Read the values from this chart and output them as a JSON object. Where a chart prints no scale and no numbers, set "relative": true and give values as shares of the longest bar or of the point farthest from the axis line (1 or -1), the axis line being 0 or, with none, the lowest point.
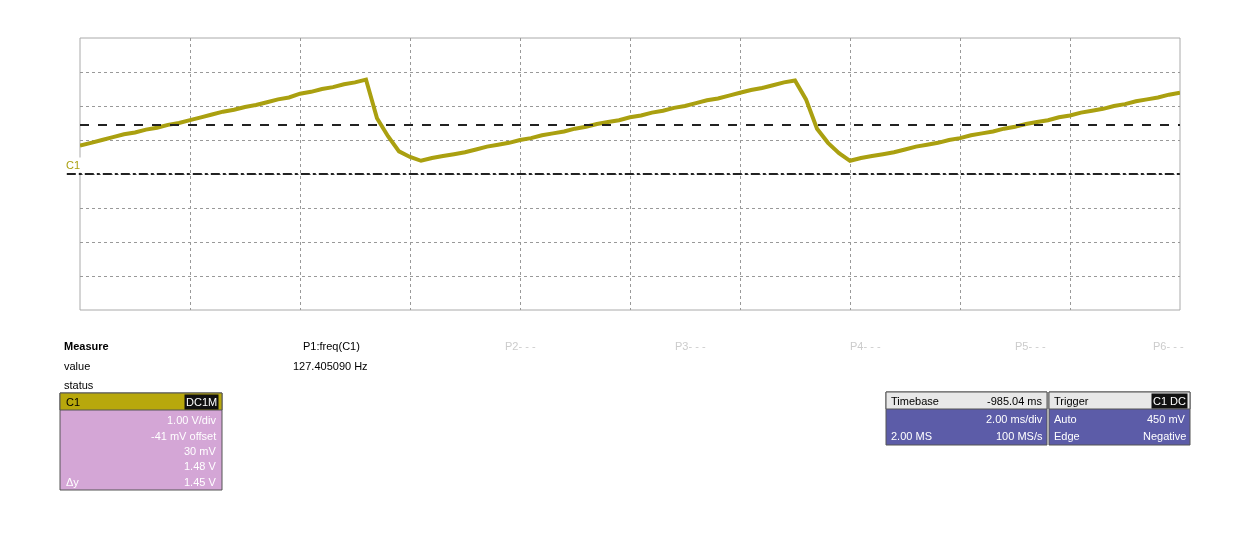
{
  "chart_data": {
    "type": "line",
    "relative": true,
    "grid": true,
    "marker": "none",
    "line_style": "solid",
    "categories": [
      null,
      null,
      null,
      null,
      null,
      null,
      null,
      null,
      null,
      null,
      null,
      null,
      null,
      null,
      null,
      null,
      null,
      null,
      null,
      null,
      null,
      null,
      null,
      null,
      null,
      null,
      null,
      null,
      null,
      null,
      null,
      null,
      null,
      null,
      null,
      null,
      null,
      null,
      null,
      null,
      null,
      null,
      null,
      null,
      null,
      null,
      null,
      null,
      null,
      null,
      null,
      null,
      null,
      null,
      null,
      null,
      null,
      null,
      null,
      null,
      null,
      null,
      null,
      null,
      null,
      null,
      null,
      null,
      null,
      null,
      null,
      null,
      null,
      null,
      null,
      null,
      null,
      null,
      null,
      null,
      null,
      null,
      null,
      null,
      null,
      null,
      null,
      null,
      null,
      null,
      null,
      null,
      null,
      null,
      null,
      null,
      null,
      null,
      null,
      null,
      null
    ],
    "series": [
      {
        "color": "#aaa010",
        "values": [
          0.3,
          0.33,
          0.36,
          0.39,
          0.42,
          0.44,
          0.47,
          0.49,
          0.52,
          0.54,
          0.57,
          0.6,
          0.63,
          0.66,
          0.68,
          0.71,
          0.73,
          0.76,
          0.79,
          0.81,
          0.85,
          0.87,
          0.9,
          0.92,
          0.95,
          0.97,
          1.0,
          0.59,
          0.4,
          0.24,
          0.18,
          0.14,
          0.17,
          0.19,
          0.21,
          0.23,
          0.26,
          0.29,
          0.31,
          0.33,
          0.36,
          0.38,
          0.41,
          0.43,
          0.45,
          0.48,
          0.5,
          0.53,
          0.55,
          0.57,
          0.6,
          0.62,
          0.65,
          0.67,
          0.7,
          0.72,
          0.75,
          0.78,
          0.8,
          0.83,
          0.86,
          0.89,
          0.91,
          0.94,
          0.97,
          0.99,
          0.79,
          0.48,
          0.33,
          0.22,
          0.14,
          0.17,
          0.19,
          0.21,
          0.23,
          0.26,
          0.29,
          0.31,
          0.33,
          0.36,
          0.38,
          0.41,
          0.43,
          0.45,
          0.48,
          0.5,
          0.53,
          0.55,
          0.57,
          0.6,
          0.62,
          0.65,
          0.67,
          0.69,
          0.72,
          0.74,
          0.77,
          0.79,
          0.81,
          0.84,
          0.86
        ]
      }
    ],
    "ref_lines": [
      {
        "axis": "y",
        "value": 0.52,
        "color": "#222222",
        "line_style": "dashed"
      }
    ],
    "annotations": [
      "Measure",
      "P1:freq(C1)",
      "P2- - -",
      "P3- - -",
      "P4- - -",
      "P5- - -",
      "P6- - -",
      "value",
      "127.405090 Hz",
      "status",
      "C1",
      "DC1M",
      "1.00 V/div",
      "-41 mV offset",
      "30 mV",
      "1.48 V",
      "Δy",
      "1.45 V",
      "Timebase",
      "-985.04 ms",
      "2.00 ms/div",
      "2.00 MS",
      "100 MS/s",
      "Trigger",
      "C1 DC",
      "Auto",
      "450 mV",
      "Edge",
      "Negative",
      "C1"
    ]
  }
}
